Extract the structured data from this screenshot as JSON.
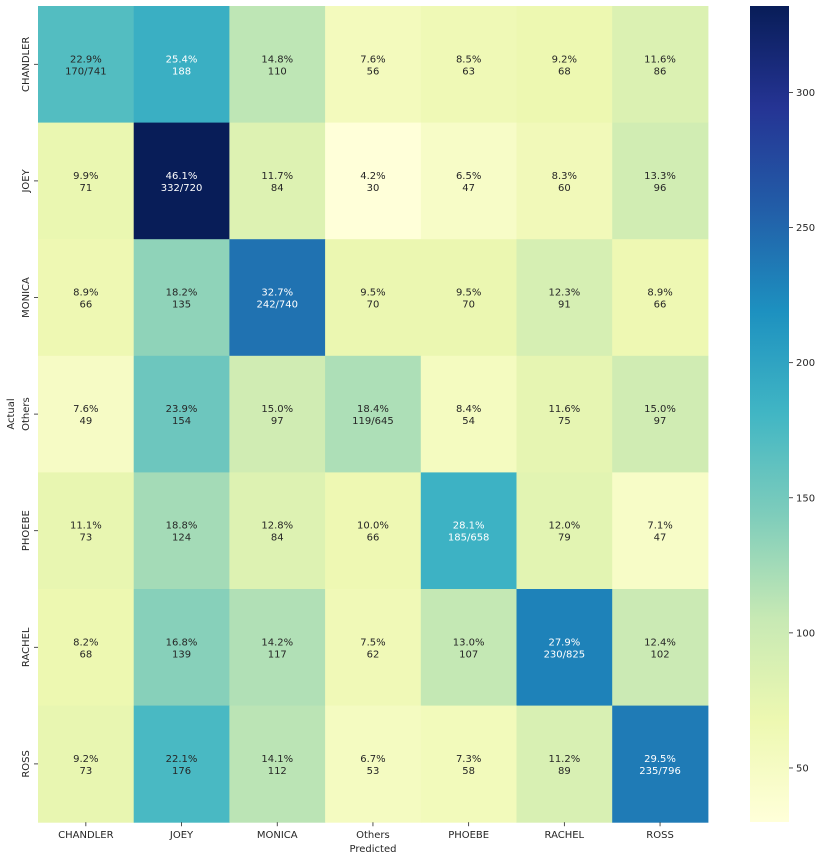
{
  "chart_data": {
    "type": "heatmap",
    "xlabel": "Predicted",
    "ylabel": "Actual",
    "x_categories": [
      "CHANDLER",
      "JOEY",
      "MONICA",
      "Others",
      "PHOEBE",
      "RACHEL",
      "ROSS"
    ],
    "y_categories": [
      "CHANDLER",
      "JOEY",
      "MONICA",
      "Others",
      "PHOEBE",
      "RACHEL",
      "ROSS"
    ],
    "values": [
      [
        170,
        188,
        110,
        56,
        63,
        68,
        86
      ],
      [
        71,
        332,
        84,
        30,
        47,
        60,
        96
      ],
      [
        66,
        135,
        242,
        70,
        70,
        91,
        66
      ],
      [
        49,
        154,
        97,
        119,
        54,
        75,
        97
      ],
      [
        73,
        124,
        84,
        66,
        185,
        79,
        47
      ],
      [
        68,
        139,
        117,
        62,
        107,
        230,
        102
      ],
      [
        73,
        176,
        112,
        53,
        58,
        89,
        235
      ]
    ],
    "cell_labels": [
      [
        [
          "22.9%",
          "170/741"
        ],
        [
          "25.4%",
          "188"
        ],
        [
          "14.8%",
          "110"
        ],
        [
          "7.6%",
          "56"
        ],
        [
          "8.5%",
          "63"
        ],
        [
          "9.2%",
          "68"
        ],
        [
          "11.6%",
          "86"
        ]
      ],
      [
        [
          "9.9%",
          "71"
        ],
        [
          "46.1%",
          "332/720"
        ],
        [
          "11.7%",
          "84"
        ],
        [
          "4.2%",
          "30"
        ],
        [
          "6.5%",
          "47"
        ],
        [
          "8.3%",
          "60"
        ],
        [
          "13.3%",
          "96"
        ]
      ],
      [
        [
          "8.9%",
          "66"
        ],
        [
          "18.2%",
          "135"
        ],
        [
          "32.7%",
          "242/740"
        ],
        [
          "9.5%",
          "70"
        ],
        [
          "9.5%",
          "70"
        ],
        [
          "12.3%",
          "91"
        ],
        [
          "8.9%",
          "66"
        ]
      ],
      [
        [
          "7.6%",
          "49"
        ],
        [
          "23.9%",
          "154"
        ],
        [
          "15.0%",
          "97"
        ],
        [
          "18.4%",
          "119/645"
        ],
        [
          "8.4%",
          "54"
        ],
        [
          "11.6%",
          "75"
        ],
        [
          "15.0%",
          "97"
        ]
      ],
      [
        [
          "11.1%",
          "73"
        ],
        [
          "18.8%",
          "124"
        ],
        [
          "12.8%",
          "84"
        ],
        [
          "10.0%",
          "66"
        ],
        [
          "28.1%",
          "185/658"
        ],
        [
          "12.0%",
          "79"
        ],
        [
          "7.1%",
          "47"
        ]
      ],
      [
        [
          "8.2%",
          "68"
        ],
        [
          "16.8%",
          "139"
        ],
        [
          "14.2%",
          "117"
        ],
        [
          "7.5%",
          "62"
        ],
        [
          "13.0%",
          "107"
        ],
        [
          "27.9%",
          "230/825"
        ],
        [
          "12.4%",
          "102"
        ]
      ],
      [
        [
          "9.2%",
          "73"
        ],
        [
          "22.1%",
          "176"
        ],
        [
          "14.1%",
          "112"
        ],
        [
          "6.7%",
          "53"
        ],
        [
          "7.3%",
          "58"
        ],
        [
          "11.2%",
          "89"
        ],
        [
          "29.5%",
          "235/796"
        ]
      ]
    ],
    "colormap": "YlGnBu",
    "colorbar": {
      "range": [
        30,
        332
      ],
      "ticks": [
        50,
        100,
        150,
        200,
        250,
        300
      ]
    }
  }
}
